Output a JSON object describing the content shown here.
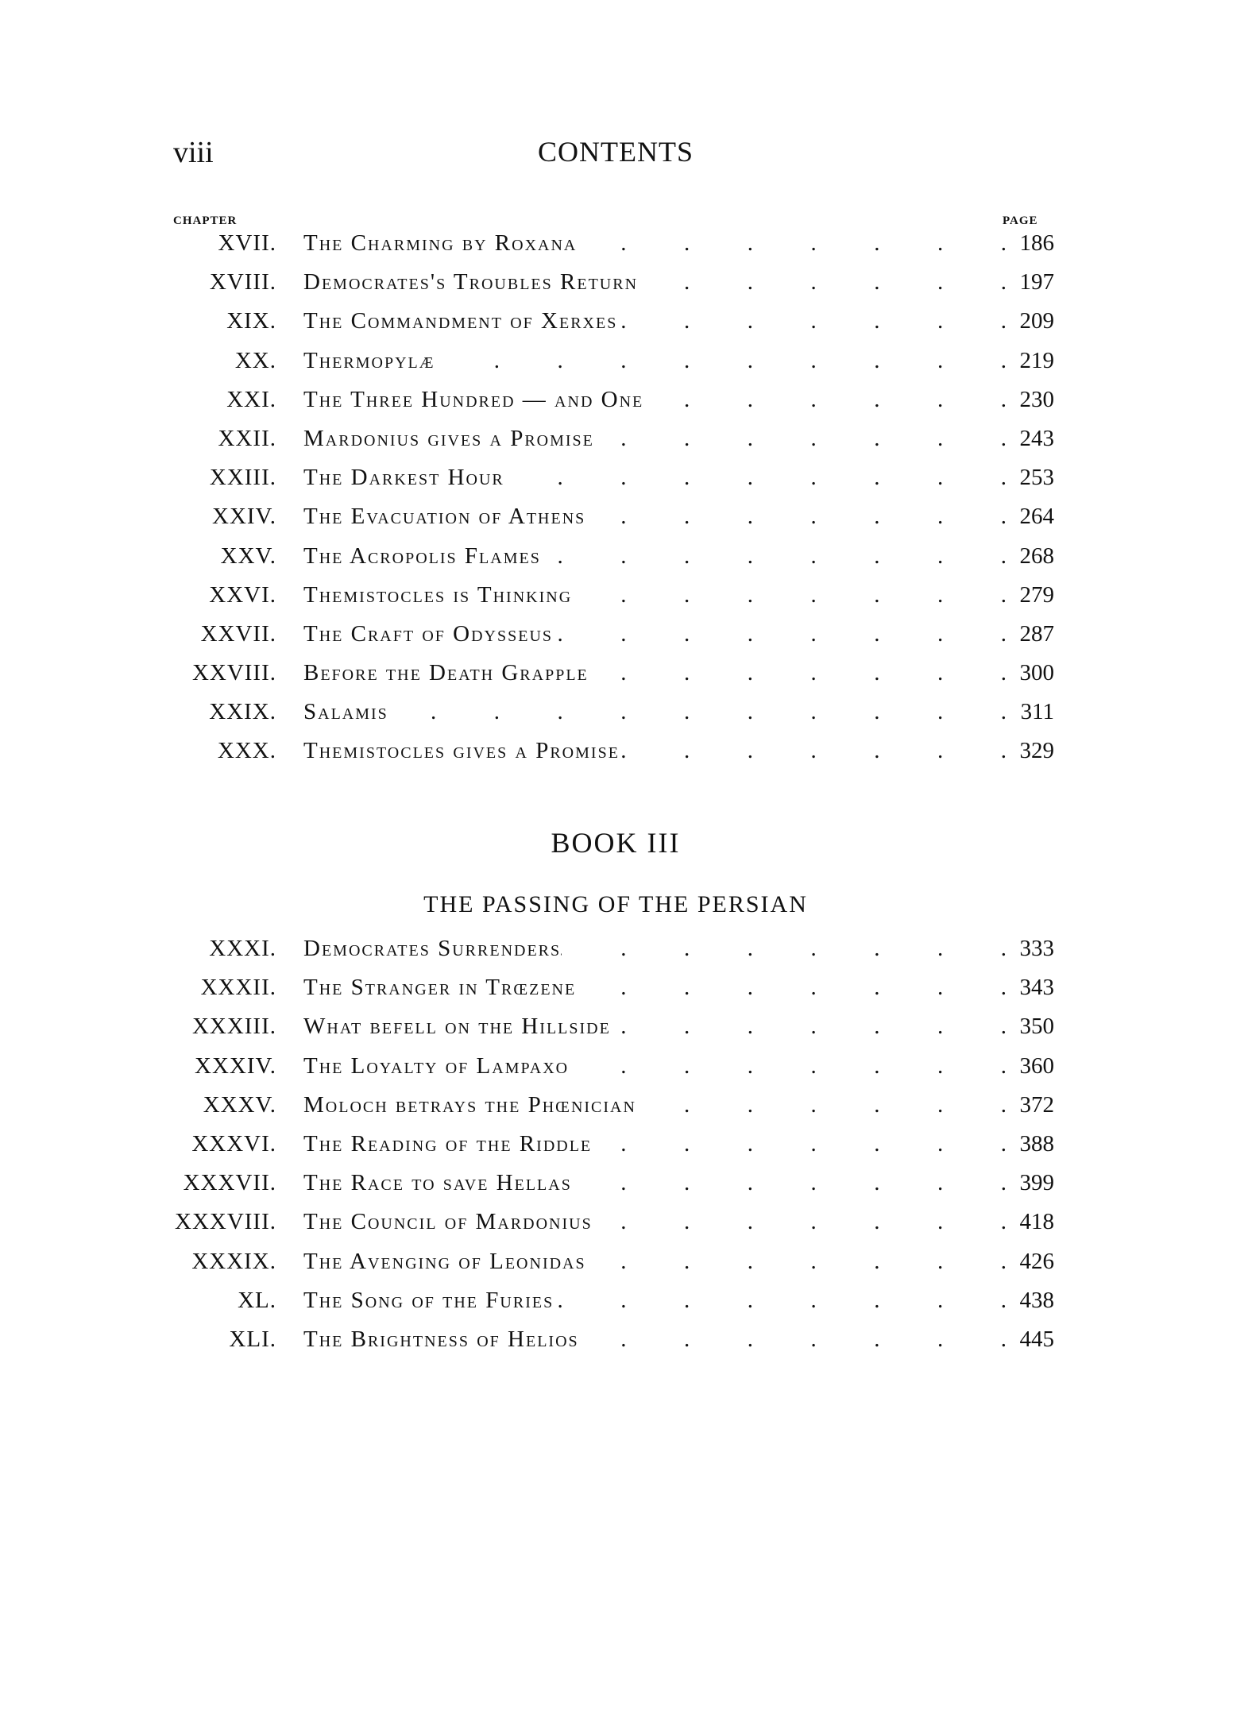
{
  "header": {
    "folio": "viii",
    "running_title": "CONTENTS"
  },
  "labels": {
    "chapter": "CHAPTER",
    "page": "PAGE"
  },
  "section1": [
    {
      "num": "XVII.",
      "title": "The Charming by Roxana",
      "page": "186"
    },
    {
      "num": "XVIII.",
      "title": "Democrates's Troubles Return",
      "page": "197"
    },
    {
      "num": "XIX.",
      "title": "The Commandment of Xerxes",
      "page": "209"
    },
    {
      "num": "XX.",
      "title": "Thermopylæ",
      "page": "219"
    },
    {
      "num": "XXI.",
      "title": "The Three Hundred — and One",
      "page": "230"
    },
    {
      "num": "XXII.",
      "title": "Mardonius gives a Promise",
      "page": "243"
    },
    {
      "num": "XXIII.",
      "title": "The Darkest Hour",
      "page": "253"
    },
    {
      "num": "XXIV.",
      "title": "The Evacuation of Athens",
      "page": "264"
    },
    {
      "num": "XXV.",
      "title": "The Acropolis Flames",
      "page": "268"
    },
    {
      "num": "XXVI.",
      "title": "Themistocles is Thinking",
      "page": "279"
    },
    {
      "num": "XXVII.",
      "title": "The Craft of Odysseus",
      "page": "287"
    },
    {
      "num": "XXVIII.",
      "title": "Before the Death Grapple",
      "page": "300"
    },
    {
      "num": "XXIX.",
      "title": "Salamis",
      "page": "311"
    },
    {
      "num": "XXX.",
      "title": "Themistocles gives a Promise",
      "page": "329"
    }
  ],
  "book": {
    "heading": "BOOK III",
    "subtitle": "THE PASSING OF THE PERSIAN"
  },
  "section2": [
    {
      "num": "XXXI.",
      "title": "Democrates Surrenders",
      "page": "333"
    },
    {
      "num": "XXXII.",
      "title": "The Stranger in Trœzene",
      "page": "343"
    },
    {
      "num": "XXXIII.",
      "title": "What befell on the Hillside",
      "page": "350"
    },
    {
      "num": "XXXIV.",
      "title": "The Loyalty of Lampaxo",
      "page": "360"
    },
    {
      "num": "XXXV.",
      "title": "Moloch betrays the Phœnician",
      "page": "372"
    },
    {
      "num": "XXXVI.",
      "title": "The Reading of the Riddle",
      "page": "388"
    },
    {
      "num": "XXXVII.",
      "title": "The Race to save Hellas",
      "page": "399"
    },
    {
      "num": "XXXVIII.",
      "title": "The Council of Mardonius",
      "page": "418"
    },
    {
      "num": "XXXIX.",
      "title": "The Avenging of Leonidas",
      "page": "426"
    },
    {
      "num": "XL.",
      "title": "The Song of the Furies",
      "page": "438"
    },
    {
      "num": "XLI.",
      "title": "The Brightness of Helios",
      "page": "445"
    }
  ]
}
